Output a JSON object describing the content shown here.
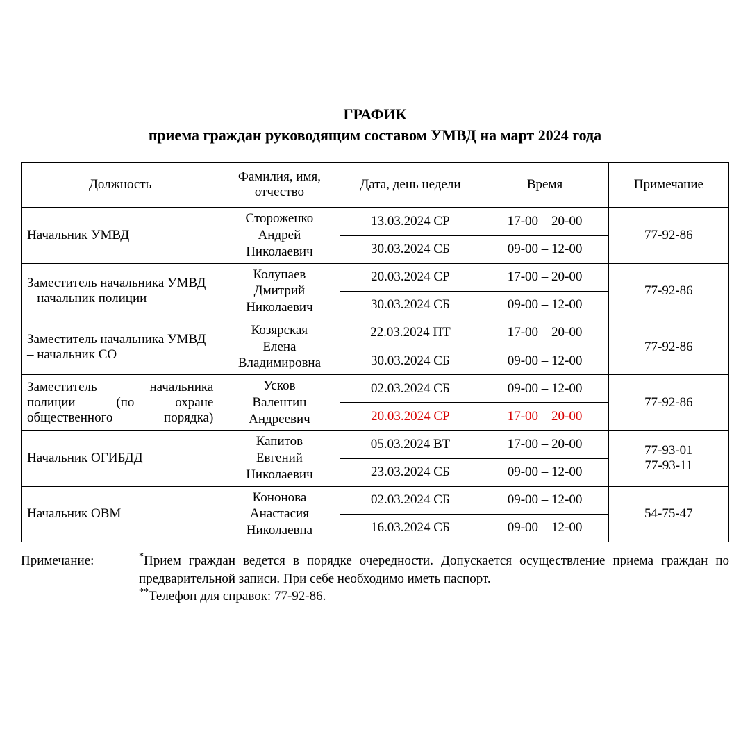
{
  "title_line1": "ГРАФИК",
  "title_line2": "приема граждан руководящим составом УМВД на март 2024 года",
  "columns": [
    "Должность",
    "Фамилия, имя, отчество",
    "Дата, день недели",
    "Время",
    "Примечание"
  ],
  "rows": [
    {
      "position": "Начальник УМВД",
      "position_justify": false,
      "name": "Стороженко\nАндрей\nНиколаевич",
      "slots": [
        {
          "date": "13.03.2024 СР",
          "time": "17-00 – 20-00",
          "highlight": false,
          "pad": "tall"
        },
        {
          "date": "30.03.2024 СБ",
          "time": "09-00 – 12-00",
          "highlight": false,
          "pad": "tall"
        }
      ],
      "note": "77-92-86"
    },
    {
      "position": "Заместитель начальника УМВД – начальник полиции",
      "position_justify": false,
      "name": "Колупаев\nДмитрий\nНиколаевич",
      "slots": [
        {
          "date": "20.03.2024 СР",
          "time": "17-00 – 20-00",
          "highlight": false,
          "pad": "med"
        },
        {
          "date": "30.03.2024 СБ",
          "time": "09-00 – 12-00",
          "highlight": false,
          "pad": "sm"
        }
      ],
      "note": "77-92-86"
    },
    {
      "position": "Заместитель начальника УМВД – начальник СО",
      "position_justify": false,
      "name": "Козярская\nЕлена\nВладимировна",
      "slots": [
        {
          "date": "22.03.2024 ПТ",
          "time": "17-00 – 20-00",
          "highlight": false,
          "pad": "med"
        },
        {
          "date": "30.03.2024 СБ",
          "time": "09-00 – 12-00",
          "highlight": false,
          "pad": "sm"
        }
      ],
      "note": "77-92-86"
    },
    {
      "position": "Заместитель начальника полиции (по охране общественного порядка)",
      "position_justify": true,
      "name": "Усков\nВалентин\nАндреевич",
      "slots": [
        {
          "date": "02.03.2024 СБ",
          "time": "09-00 – 12-00",
          "highlight": false,
          "pad": "sm"
        },
        {
          "date": "20.03.2024 СР",
          "time": "17-00 – 20-00",
          "highlight": true,
          "pad": "sm"
        }
      ],
      "note": "77-92-86"
    },
    {
      "position": "Начальник ОГИБДД",
      "position_justify": false,
      "name": "Капитов\nЕвгений\nНиколаевич",
      "slots": [
        {
          "date": "05.03.2024 ВТ",
          "time": "17-00 – 20-00",
          "highlight": false,
          "pad": "sm"
        },
        {
          "date": "23.03.2024 СБ",
          "time": "09-00 – 12-00",
          "highlight": false,
          "pad": "sm"
        }
      ],
      "note": "77-93-01\n77-93-11"
    },
    {
      "position": "Начальник ОВМ",
      "position_justify": false,
      "name": "Кононова\nАнастасия\nНиколаевна",
      "slots": [
        {
          "date": "02.03.2024 СБ",
          "time": "09-00 – 12-00",
          "highlight": false,
          "pad": "sm"
        },
        {
          "date": "16.03.2024 СБ",
          "time": "09-00 – 12-00",
          "highlight": false,
          "pad": "sm"
        }
      ],
      "note": "54-75-47"
    }
  ],
  "footnote_label": "Примечание:",
  "footnote_line1": "Прием граждан ведется в порядке очередности. Допускается осуществление приема граждан по предварительной записи. При себе необходимо иметь паспорт.",
  "footnote_line2": "Телефон для справок: 77-92-86.",
  "colors": {
    "text": "#000000",
    "highlight": "#d80000",
    "border": "#000000",
    "background": "#ffffff"
  },
  "font": {
    "family": "Times New Roman",
    "title_size_pt": 16,
    "body_size_pt": 14
  }
}
